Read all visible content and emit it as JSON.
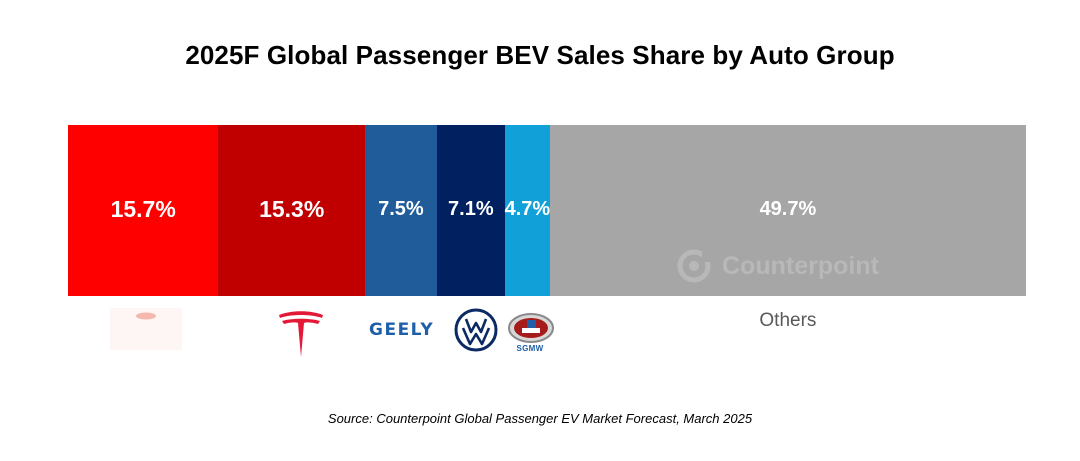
{
  "chart_data": {
    "type": "bar",
    "subtype": "100%-stacked-horizontal",
    "title": "2025F Global Passenger BEV Sales Share by Auto Group",
    "unit": "%",
    "series": [
      {
        "value": 15.7,
        "label": "15.7%",
        "color": "#ff0000",
        "logo": "byd-logo",
        "large": true
      },
      {
        "value": 15.3,
        "label": "15.3%",
        "color": "#c00000",
        "logo": "tesla-logo",
        "large": true
      },
      {
        "value": 7.5,
        "label": "7.5%",
        "color": "#1f5c99",
        "logo": "geely-logo",
        "logo_text": "GEELY"
      },
      {
        "value": 7.1,
        "label": "7.1%",
        "color": "#002060",
        "logo": "volkswagen-logo"
      },
      {
        "value": 4.7,
        "label": "4.7%",
        "color": "#12a0d8",
        "logo": "sgmw-logo",
        "logo_text": "SGMW"
      },
      {
        "value": 49.7,
        "label": "49.7%",
        "color": "#a6a6a6",
        "category_label": "Others"
      }
    ]
  },
  "watermark": {
    "text": "Counterpoint",
    "color": "#b8b8b8"
  },
  "footer": {
    "source": "Source: Counterpoint Global Passenger EV Market Forecast, March 2025"
  }
}
